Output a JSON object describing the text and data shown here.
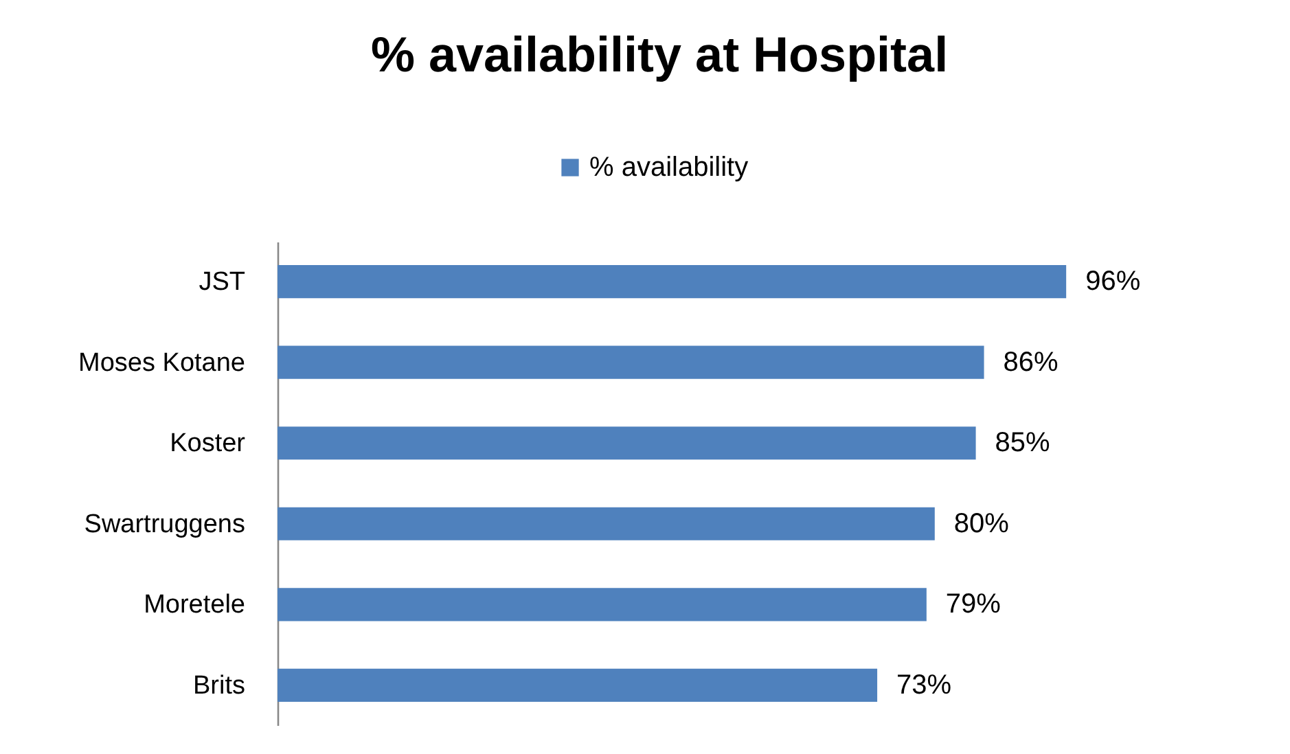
{
  "chart_data": {
    "type": "bar",
    "orientation": "horizontal",
    "title": "% availability at Hospital",
    "legend": "top",
    "categories": [
      "JST",
      "Moses Kotane",
      "Koster",
      "Swartruggens",
      "Moretele",
      "Brits"
    ],
    "series": [
      {
        "name": "% availability",
        "color": "#4f81bd",
        "values": [
          96,
          86,
          85,
          80,
          79,
          73
        ],
        "value_labels": [
          "96%",
          "86%",
          "85%",
          "80%",
          "79%",
          "73%"
        ]
      }
    ]
  }
}
